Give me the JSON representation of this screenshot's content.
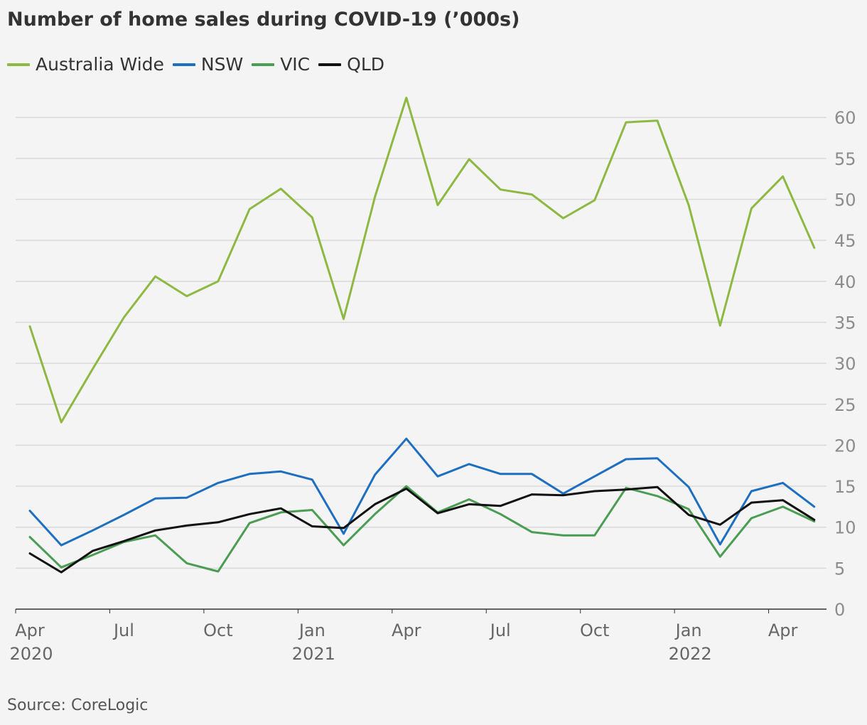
{
  "title": "Number of home sales during COVID-19 (’000s)",
  "source": "Source: CoreLogic",
  "chart_data": {
    "type": "line",
    "title": "Number of home sales during COVID-19 (’000s)",
    "xlabel": "",
    "ylabel": "",
    "ylim": [
      0,
      60
    ],
    "y_ticks": [
      0,
      5,
      10,
      15,
      20,
      25,
      30,
      35,
      40,
      45,
      50,
      55,
      60
    ],
    "y_axis_side": "right",
    "grid": "horizontal",
    "legend_position": "top-left",
    "x": [
      "2020-04",
      "2020-05",
      "2020-06",
      "2020-07",
      "2020-08",
      "2020-09",
      "2020-10",
      "2020-11",
      "2020-12",
      "2021-01",
      "2021-02",
      "2021-03",
      "2021-04",
      "2021-05",
      "2021-06",
      "2021-07",
      "2021-08",
      "2021-09",
      "2021-10",
      "2021-11",
      "2021-12",
      "2022-01",
      "2022-02",
      "2022-03",
      "2022-04",
      "2022-05"
    ],
    "x_tick_labels": [
      {
        "label": "Apr",
        "year": "2020",
        "at": "2020-04"
      },
      {
        "label": "Jul",
        "year": "",
        "at": "2020-07"
      },
      {
        "label": "Oct",
        "year": "",
        "at": "2020-10"
      },
      {
        "label": "Jan",
        "year": "2021",
        "at": "2021-01"
      },
      {
        "label": "Apr",
        "year": "",
        "at": "2021-04"
      },
      {
        "label": "Jul",
        "year": "",
        "at": "2021-07"
      },
      {
        "label": "Oct",
        "year": "",
        "at": "2021-10"
      },
      {
        "label": "Jan",
        "year": "2022",
        "at": "2022-01"
      },
      {
        "label": "Apr",
        "year": "",
        "at": "2022-04"
      }
    ],
    "series": [
      {
        "name": "Australia Wide",
        "color": "#8db943",
        "values": [
          34.5,
          22.8,
          29.3,
          35.6,
          40.6,
          38.2,
          40.0,
          48.8,
          51.3,
          47.8,
          35.4,
          50.3,
          62.4,
          49.3,
          54.9,
          51.2,
          50.6,
          47.7,
          49.9,
          59.4,
          59.6,
          49.3,
          34.6,
          48.9,
          52.8,
          44.1
        ]
      },
      {
        "name": "NSW",
        "color": "#1f6fc0",
        "values": [
          12.0,
          7.8,
          9.6,
          11.5,
          13.5,
          13.6,
          15.4,
          16.5,
          16.8,
          15.8,
          9.2,
          16.4,
          20.8,
          16.2,
          17.7,
          16.5,
          16.5,
          14.1,
          16.2,
          18.3,
          18.4,
          14.9,
          7.9,
          14.4,
          15.4,
          12.5
        ]
      },
      {
        "name": "VIC",
        "color": "#4a9d52",
        "values": [
          8.8,
          5.1,
          6.6,
          8.2,
          9.0,
          5.6,
          4.6,
          10.5,
          11.8,
          12.1,
          7.8,
          11.6,
          15.0,
          11.8,
          13.4,
          11.6,
          9.4,
          9.0,
          9.0,
          14.8,
          13.8,
          12.2,
          6.4,
          11.1,
          12.5,
          10.7
        ]
      },
      {
        "name": "QLD",
        "color": "#111111",
        "values": [
          6.8,
          4.5,
          7.1,
          8.3,
          9.6,
          10.2,
          10.6,
          11.6,
          12.3,
          10.1,
          9.9,
          12.8,
          14.7,
          11.7,
          12.8,
          12.6,
          14.0,
          13.9,
          14.4,
          14.6,
          14.9,
          11.5,
          10.3,
          13.0,
          13.3,
          10.9
        ]
      }
    ]
  }
}
